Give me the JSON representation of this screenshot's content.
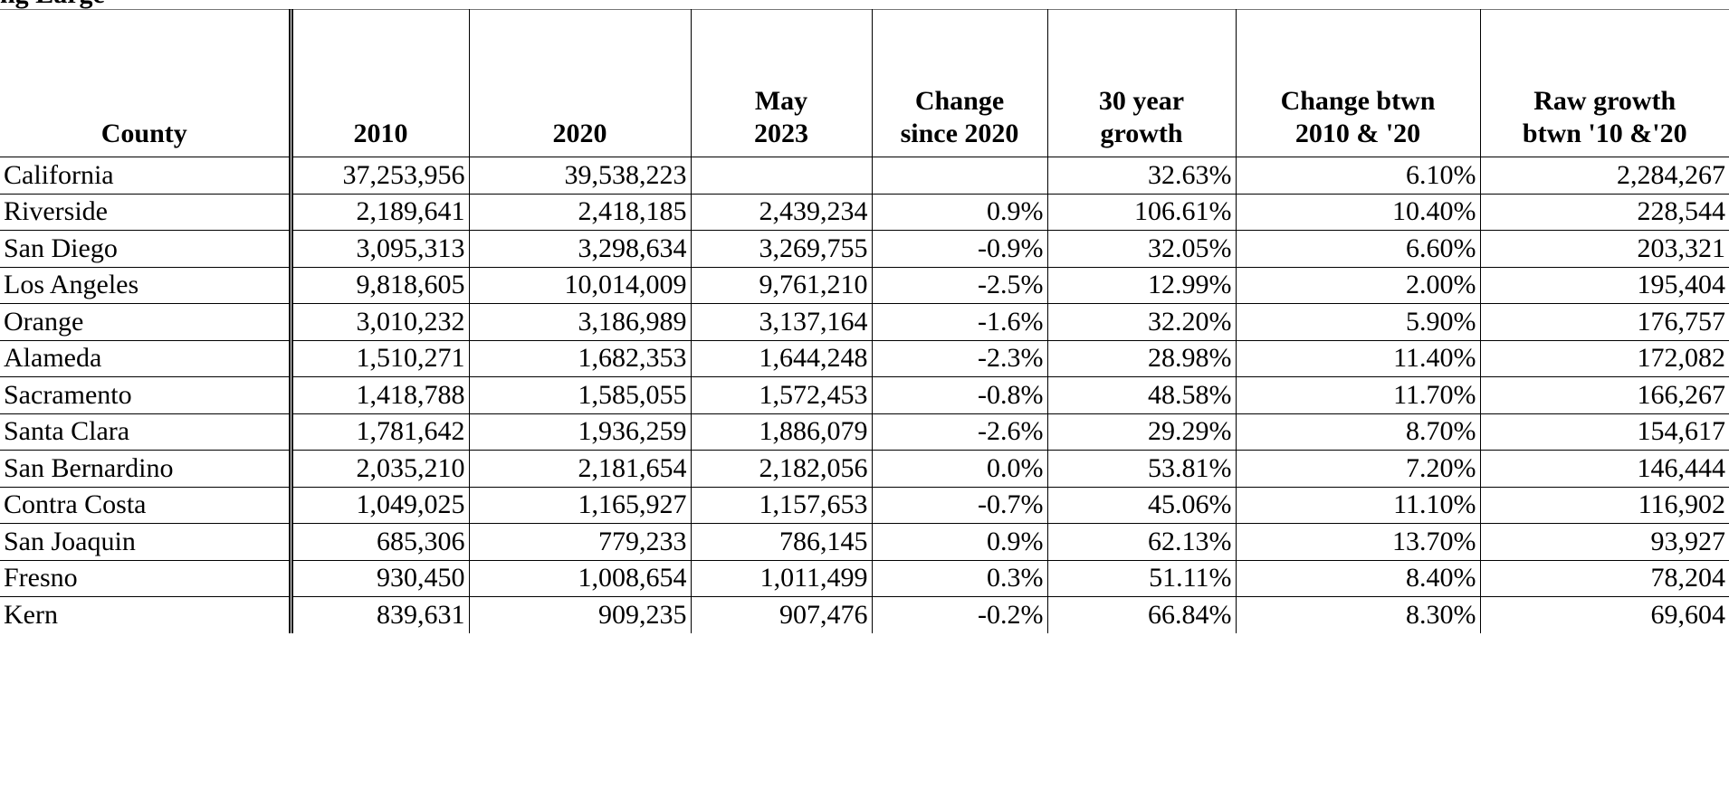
{
  "page": {
    "cutoff_heading": "ng Large"
  },
  "table": {
    "headers": [
      "County",
      "2010",
      "2020",
      "May\n2023",
      "Change\nsince 2020",
      "30 year\ngrowth",
      "Change btwn\n2010 & '20",
      "Raw growth\nbtwn '10 &'20"
    ],
    "rows": [
      [
        "California",
        "37,253,956",
        "39,538,223",
        "",
        "",
        "32.63%",
        "6.10%",
        "2,284,267"
      ],
      [
        "Riverside",
        "2,189,641",
        "2,418,185",
        "2,439,234",
        "0.9%",
        "106.61%",
        "10.40%",
        "228,544"
      ],
      [
        "San Diego",
        "3,095,313",
        "3,298,634",
        "3,269,755",
        "-0.9%",
        "32.05%",
        "6.60%",
        "203,321"
      ],
      [
        "Los Angeles",
        "9,818,605",
        "10,014,009",
        "9,761,210",
        "-2.5%",
        "12.99%",
        "2.00%",
        "195,404"
      ],
      [
        "Orange",
        "3,010,232",
        "3,186,989",
        "3,137,164",
        "-1.6%",
        "32.20%",
        "5.90%",
        "176,757"
      ],
      [
        "Alameda",
        "1,510,271",
        "1,682,353",
        "1,644,248",
        "-2.3%",
        "28.98%",
        "11.40%",
        "172,082"
      ],
      [
        "Sacramento",
        "1,418,788",
        "1,585,055",
        "1,572,453",
        "-0.8%",
        "48.58%",
        "11.70%",
        "166,267"
      ],
      [
        "Santa Clara",
        "1,781,642",
        "1,936,259",
        "1,886,079",
        "-2.6%",
        "29.29%",
        "8.70%",
        "154,617"
      ],
      [
        "San Bernardino",
        "2,035,210",
        "2,181,654",
        "2,182,056",
        "0.0%",
        "53.81%",
        "7.20%",
        "146,444"
      ],
      [
        "Contra Costa",
        "1,049,025",
        "1,165,927",
        "1,157,653",
        "-0.7%",
        "45.06%",
        "11.10%",
        "116,902"
      ],
      [
        "San Joaquin",
        "685,306",
        "779,233",
        "786,145",
        "0.9%",
        "62.13%",
        "13.70%",
        "93,927"
      ],
      [
        "Fresno",
        "930,450",
        "1,008,654",
        "1,011,499",
        "0.3%",
        "51.11%",
        "8.40%",
        "78,204"
      ],
      [
        "Kern",
        "839,631",
        "909,235",
        "907,476",
        "-0.2%",
        "66.84%",
        "8.30%",
        "69,604"
      ]
    ]
  }
}
